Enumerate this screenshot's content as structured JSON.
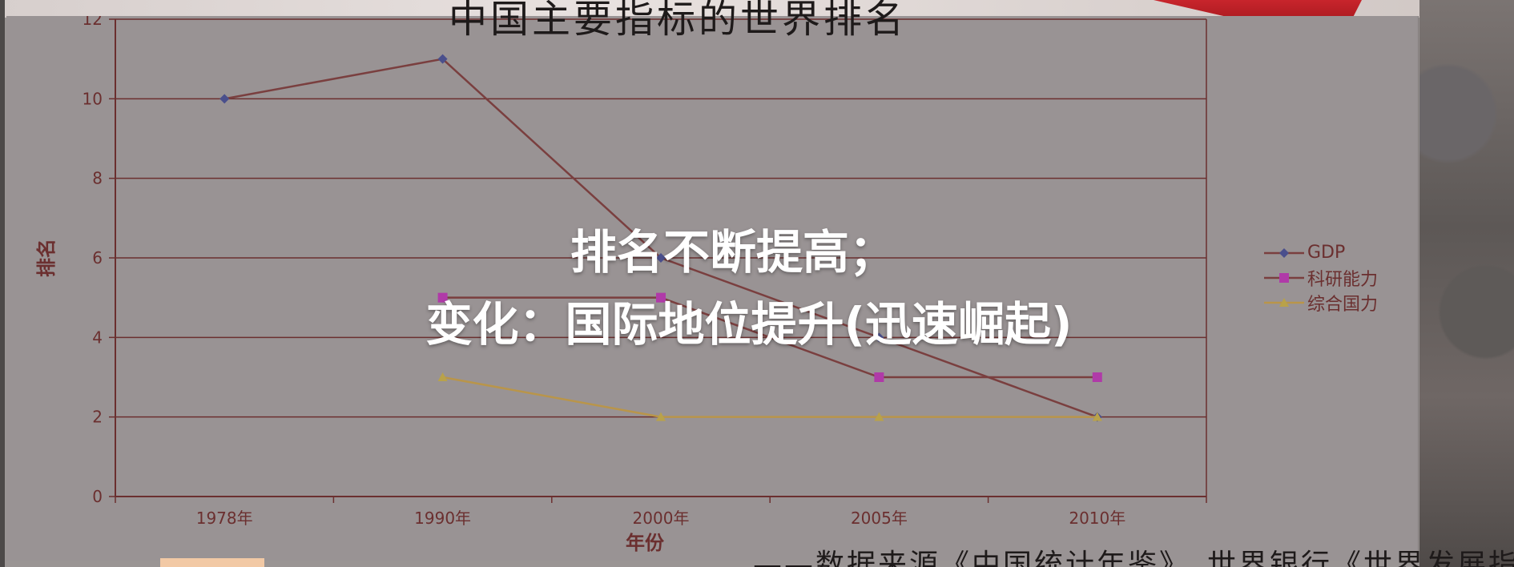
{
  "page": {
    "title": "中国主要指标的世界排名",
    "overlay_line1": "排名不断提高；",
    "overlay_line2": "变化：国际地位提升(迅速崛起)",
    "source_note": "——数据来源《中国统计年鉴》、世界银行《世界发展指"
  },
  "colors": {
    "axis": "#6b2f2f",
    "gdp": "#4a4f8c",
    "research": "#b03aa8",
    "national": "#b9a24a",
    "line_gdp": "#7a3f3f",
    "line_research": "#7a3f3f",
    "line_national": "#b9954a"
  },
  "chart_data": {
    "type": "line",
    "title": "",
    "xlabel": "年份",
    "ylabel": "排名",
    "categories": [
      "1978年",
      "1990年",
      "2000年",
      "2005年",
      "2010年"
    ],
    "ylim": [
      0,
      12
    ],
    "yticks": [
      0,
      2,
      4,
      6,
      8,
      10,
      12
    ],
    "grid": true,
    "legend_position": "right",
    "series": [
      {
        "name": "GDP",
        "values": [
          10,
          11,
          6,
          4,
          2
        ],
        "marker": "diamond",
        "color_key": "gdp"
      },
      {
        "name": "科研能力",
        "values": [
          null,
          5,
          5,
          3,
          3
        ],
        "marker": "square",
        "color_key": "research"
      },
      {
        "name": "综合国力",
        "values": [
          null,
          3,
          2,
          2,
          2
        ],
        "marker": "triangle",
        "color_key": "national"
      }
    ]
  }
}
